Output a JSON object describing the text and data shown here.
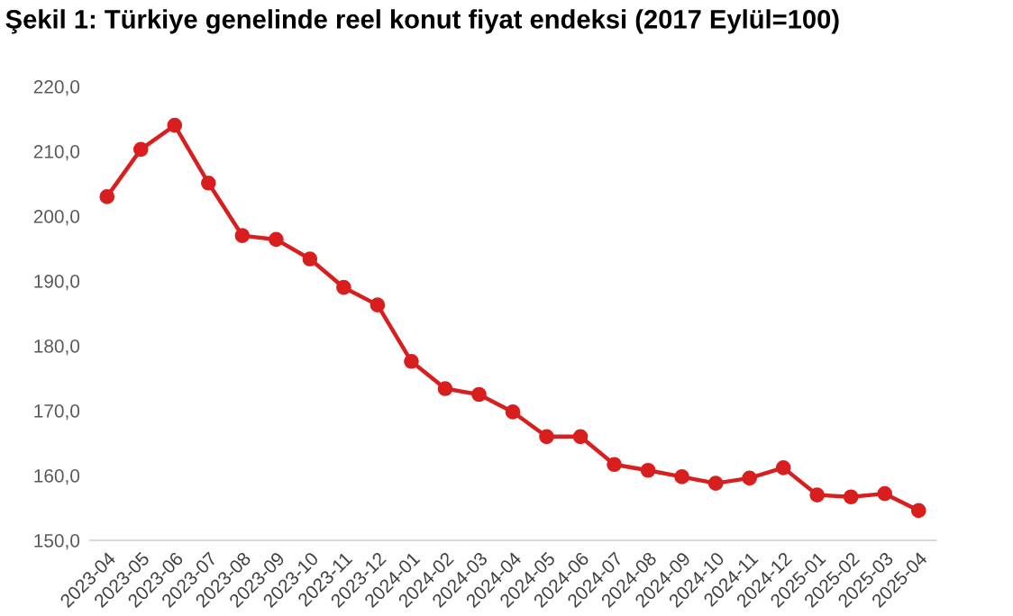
{
  "chart_data": {
    "type": "line",
    "title": "Şekil 1: Türkiye genelinde reel konut fiyat endeksi (2017 Eylül=100)",
    "categories": [
      "2023-04",
      "2023-05",
      "2023-06",
      "2023-07",
      "2023-08",
      "2023-09",
      "2023-10",
      "2023-11",
      "2023-12",
      "2024-01",
      "2024-02",
      "2024-03",
      "2024-04",
      "2024-05",
      "2024-06",
      "2024-07",
      "2024-08",
      "2024-09",
      "2024-10",
      "2024-11",
      "2024-12",
      "2025-01",
      "2025-02",
      "2025-03",
      "2025-04"
    ],
    "series": [
      {
        "color": "#d81e1e",
        "values": [
          203.0,
          210.3,
          214.0,
          205.1,
          197.0,
          196.4,
          193.4,
          189.0,
          186.3,
          177.6,
          173.4,
          172.5,
          169.8,
          166.0,
          166.0,
          161.7,
          160.8,
          159.8,
          158.8,
          159.6,
          161.2,
          157.0,
          156.7,
          157.2,
          154.6
        ]
      }
    ],
    "ylim": [
      150,
      220
    ],
    "yticks": [
      {
        "value": 150,
        "label": "150,0"
      },
      {
        "value": 160,
        "label": "160,0"
      },
      {
        "value": 170,
        "label": "170,0"
      },
      {
        "value": 180,
        "label": "180,0"
      },
      {
        "value": 190,
        "label": "190,0"
      },
      {
        "value": 200,
        "label": "200,0"
      },
      {
        "value": 210,
        "label": "210,0"
      },
      {
        "value": 220,
        "label": "220,0"
      }
    ],
    "grid": false,
    "marker": "circle",
    "line_style": "solid"
  }
}
